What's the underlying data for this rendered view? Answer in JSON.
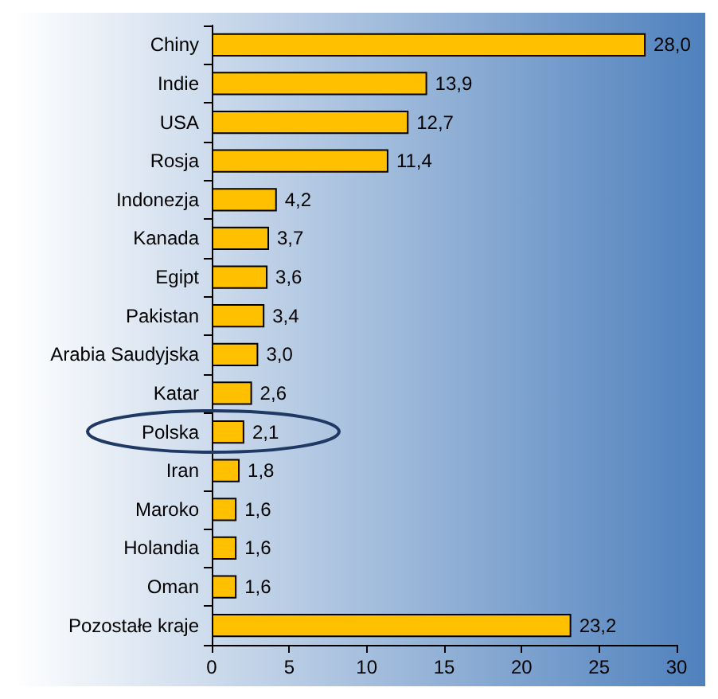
{
  "chart_data": {
    "type": "bar",
    "orientation": "horizontal",
    "categories": [
      "Chiny",
      "Indie",
      "USA",
      "Rosja",
      "Indonezja",
      "Kanada",
      "Egipt",
      "Pakistan",
      "Arabia Saudyjska",
      "Katar",
      "Polska",
      "Iran",
      "Maroko",
      "Holandia",
      "Oman",
      "Pozostałe kraje"
    ],
    "values": [
      28.0,
      13.9,
      12.7,
      11.4,
      4.2,
      3.7,
      3.6,
      3.4,
      3.0,
      2.6,
      2.1,
      1.8,
      1.6,
      1.6,
      1.6,
      23.2
    ],
    "value_labels": [
      "28,0",
      "13,9",
      "12,7",
      "11,4",
      "4,2",
      "3,7",
      "3,6",
      "3,4",
      "3,0",
      "2,6",
      "2,1",
      "1,8",
      "1,6",
      "1,6",
      "1,6",
      "23,2"
    ],
    "color": "#ffc000",
    "xlim": [
      0,
      30
    ],
    "xticks": [
      0,
      5,
      10,
      15,
      20,
      25,
      30
    ],
    "grid": false
  }
}
